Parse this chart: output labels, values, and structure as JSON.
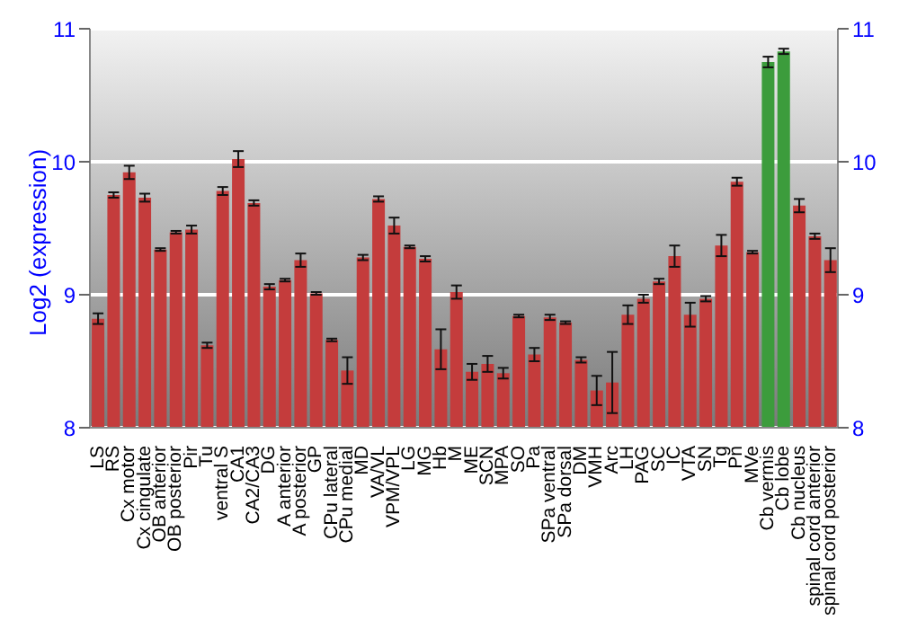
{
  "chart_data": {
    "type": "bar",
    "ylabel": "Log2 (expression)",
    "categories": [
      "LS",
      "RS",
      "Cx motor",
      "Cx cingulate",
      "OB anterior",
      "OB posterior",
      "Pir",
      "Tu",
      "ventral S",
      "CA1",
      "CA2/CA3",
      "DG",
      "A anterior",
      "A posterior",
      "GP",
      "CPu lateral",
      "CPu medial",
      "MD",
      "VA/VL",
      "VPM/VPL",
      "LG",
      "MG",
      "Hb",
      "M",
      "ME",
      "SCN",
      "MPA",
      "SO",
      "Pa",
      "SPa ventral",
      "SPa dorsal",
      "DM",
      "VMH",
      "Arc",
      "LH",
      "PAG",
      "SC",
      "IC",
      "VTA",
      "SN",
      "Tg",
      "Pn",
      "MVe",
      "Cb vermis",
      "Cb lobe",
      "Cb nucleus",
      "spinal cord anterior",
      "spinal cord posterior"
    ],
    "values": [
      8.82,
      9.75,
      9.92,
      9.73,
      9.34,
      9.47,
      9.49,
      8.62,
      9.78,
      10.02,
      9.69,
      9.06,
      9.11,
      9.26,
      9.01,
      8.66,
      8.43,
      9.28,
      9.72,
      9.52,
      9.36,
      9.27,
      8.59,
      9.02,
      8.42,
      8.48,
      8.41,
      8.84,
      8.55,
      8.83,
      8.79,
      8.51,
      8.28,
      8.34,
      8.85,
      8.97,
      9.1,
      9.29,
      8.85,
      8.97,
      9.37,
      9.85,
      9.32,
      10.75,
      10.83,
      9.67,
      9.44,
      9.26
    ],
    "errors": [
      0.04,
      0.02,
      0.05,
      0.03,
      0.01,
      0.01,
      0.03,
      0.02,
      0.03,
      0.06,
      0.02,
      0.02,
      0.01,
      0.05,
      0.01,
      0.01,
      0.1,
      0.02,
      0.02,
      0.06,
      0.01,
      0.02,
      0.15,
      0.05,
      0.06,
      0.06,
      0.04,
      0.01,
      0.05,
      0.02,
      0.01,
      0.02,
      0.11,
      0.23,
      0.07,
      0.03,
      0.02,
      0.08,
      0.09,
      0.02,
      0.08,
      0.03,
      0.01,
      0.04,
      0.02,
      0.05,
      0.02,
      0.09
    ],
    "colors": [
      "#c43c3c",
      "#c43c3c",
      "#c43c3c",
      "#c43c3c",
      "#c43c3c",
      "#c43c3c",
      "#c43c3c",
      "#c43c3c",
      "#c43c3c",
      "#c43c3c",
      "#c43c3c",
      "#c43c3c",
      "#c43c3c",
      "#c43c3c",
      "#c43c3c",
      "#c43c3c",
      "#c43c3c",
      "#c43c3c",
      "#c43c3c",
      "#c43c3c",
      "#c43c3c",
      "#c43c3c",
      "#c43c3c",
      "#c43c3c",
      "#c43c3c",
      "#c43c3c",
      "#c43c3c",
      "#c43c3c",
      "#c43c3c",
      "#c43c3c",
      "#c43c3c",
      "#c43c3c",
      "#c43c3c",
      "#c43c3c",
      "#c43c3c",
      "#c43c3c",
      "#c43c3c",
      "#c43c3c",
      "#c43c3c",
      "#c43c3c",
      "#c43c3c",
      "#c43c3c",
      "#c43c3c",
      "#3c9c3c",
      "#3c9c3c",
      "#c43c3c",
      "#c43c3c",
      "#c43c3c"
    ],
    "ylim": [
      8,
      11
    ],
    "yticks": [
      8,
      9,
      10,
      11
    ],
    "y2lim": [
      8,
      11
    ],
    "y2ticks": [
      8,
      9,
      10,
      11
    ],
    "grid": "y"
  }
}
